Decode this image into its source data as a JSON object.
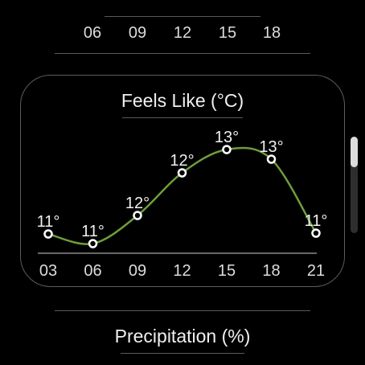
{
  "top_panel": {
    "hours": [
      "06",
      "09",
      "12",
      "15",
      "18"
    ]
  },
  "card": {
    "title": "Feels Like (°C)"
  },
  "next_section": {
    "title": "Precipitation (%)"
  },
  "colors": {
    "line": "#6e9e3a",
    "marker_fill": "#ffffff",
    "background": "#000000",
    "text": "#e8e8e8",
    "border": "#5c5c5c"
  },
  "chart_data": {
    "type": "line",
    "x": [
      "03",
      "06",
      "09",
      "12",
      "15",
      "18",
      "21"
    ],
    "values": [
      11,
      11,
      12,
      12,
      13,
      13,
      11
    ],
    "point_labels": [
      "11°",
      "11°",
      "12°",
      "12°",
      "13°",
      "13°",
      "11°"
    ],
    "title": "Feels Like (°C)",
    "xlabel": "",
    "ylabel": "",
    "grid": false,
    "legend": "none"
  }
}
